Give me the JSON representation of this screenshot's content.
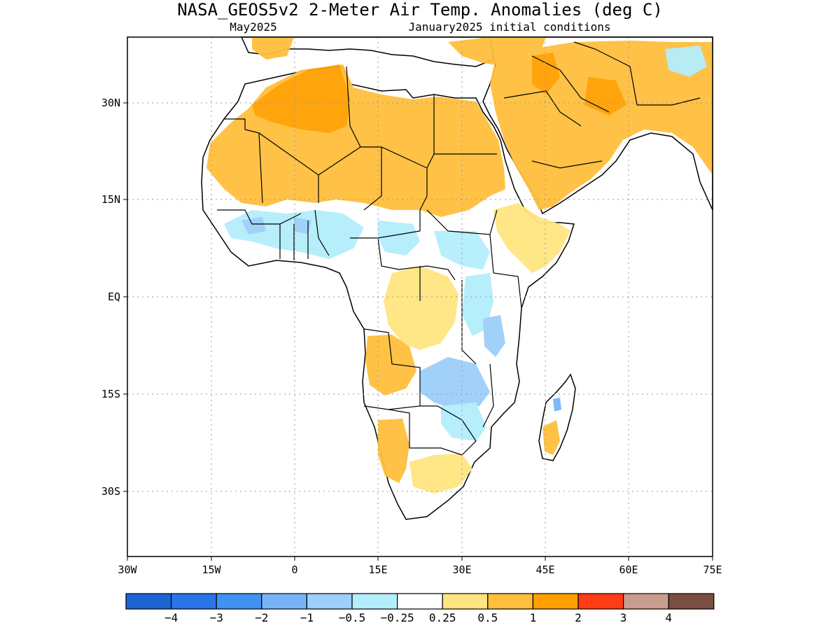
{
  "header": {
    "title": "NASA_GEOS5v2 2-Meter Air Temp. Anomalies (deg C)",
    "valid_month": "May2025",
    "init_conditions": "January2025 initial conditions"
  },
  "map": {
    "region": "Africa",
    "lon_range": [
      -30,
      75
    ],
    "lat_range": [
      -46,
      47
    ],
    "lat_labels": [
      "30N",
      "15N",
      "EQ",
      "15S",
      "30S"
    ],
    "lon_labels": [
      "30W",
      "15W",
      "0",
      "15E",
      "30E",
      "45E",
      "60E",
      "75E"
    ],
    "land_color": "#ffffff",
    "coastline_color": "#000000"
  },
  "colorbar": {
    "tick_labels": [
      "-4",
      "-3",
      "-2",
      "-1",
      "-0.5",
      "-0.25",
      "0.25",
      "0.5",
      "1",
      "2",
      "3",
      "4"
    ],
    "colors": [
      "#1c64d2",
      "#2a74ea",
      "#4091f2",
      "#76b4f7",
      "#9ccff9",
      "#b3eefc",
      "#ffffff",
      "#ffe580",
      "#ffbf3d",
      "#ffa000",
      "#ff3c14",
      "#c89d8d",
      "#7a4e40"
    ]
  }
}
